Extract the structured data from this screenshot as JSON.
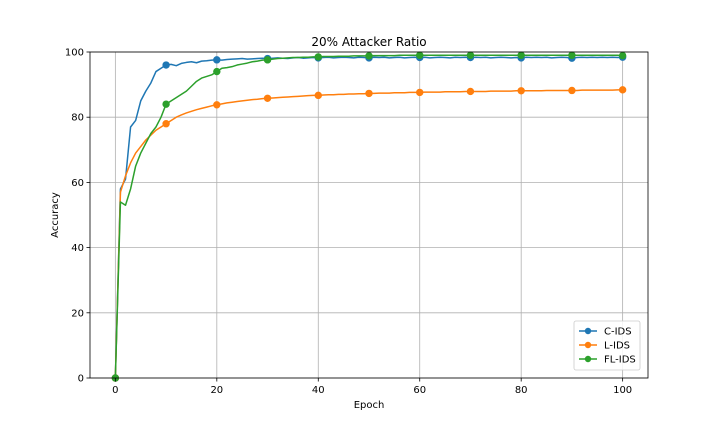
{
  "chart_data": {
    "type": "line",
    "title": "20% Attacker Ratio",
    "xlabel": "Epoch",
    "ylabel": "Accuracy",
    "xlim": [
      -5,
      105
    ],
    "ylim": [
      0,
      100
    ],
    "xticks": [
      0,
      20,
      40,
      60,
      80,
      100
    ],
    "yticks": [
      0,
      20,
      40,
      60,
      80,
      100
    ],
    "grid": true,
    "legend_position": "bottom-right",
    "marker_every": 10,
    "series": [
      {
        "name": "C-IDS",
        "color": "#1f77b4",
        "x": [
          0,
          1,
          2,
          3,
          4,
          5,
          6,
          7,
          8,
          9,
          10,
          11,
          12,
          13,
          14,
          15,
          16,
          17,
          18,
          19,
          20,
          21,
          22,
          23,
          24,
          25,
          26,
          27,
          28,
          29,
          30,
          31,
          32,
          33,
          34,
          35,
          36,
          37,
          38,
          39,
          40,
          41,
          42,
          43,
          44,
          45,
          46,
          47,
          48,
          49,
          50,
          51,
          52,
          53,
          54,
          55,
          56,
          57,
          58,
          59,
          60,
          61,
          62,
          63,
          64,
          65,
          66,
          67,
          68,
          69,
          70,
          71,
          72,
          73,
          74,
          75,
          76,
          77,
          78,
          79,
          80,
          81,
          82,
          83,
          84,
          85,
          86,
          87,
          88,
          89,
          90,
          91,
          92,
          93,
          94,
          95,
          96,
          97,
          98,
          99,
          100
        ],
        "y": [
          0,
          58,
          61,
          77,
          79,
          85,
          88,
          90.5,
          94,
          95,
          96,
          96.2,
          95.8,
          96.5,
          96.8,
          97,
          96.7,
          97.2,
          97.3,
          97.5,
          97.6,
          97.5,
          97.7,
          97.8,
          97.9,
          98,
          97.8,
          97.9,
          98,
          98.1,
          98,
          98.1,
          98.2,
          98.1,
          98,
          98.2,
          98.3,
          98.1,
          98.2,
          98.3,
          98.2,
          98.3,
          98.4,
          98.2,
          98.3,
          98.4,
          98.3,
          98.2,
          98.4,
          98.3,
          98.2,
          98.4,
          98.3,
          98.4,
          98.2,
          98.3,
          98.4,
          98.2,
          98.3,
          98.4,
          98.3,
          98.4,
          98.2,
          98.3,
          98.4,
          98.3,
          98.2,
          98.4,
          98.3,
          98.4,
          98.3,
          98.4,
          98.3,
          98.4,
          98.2,
          98.3,
          98.4,
          98.3,
          98.2,
          98.3,
          98.2,
          98.4,
          98.3,
          98.4,
          98.3,
          98.4,
          98.2,
          98.3,
          98.4,
          98.3,
          98.1,
          98.3,
          98.4,
          98.3,
          98.4,
          98.3,
          98.4,
          98.3,
          98.4,
          98.3,
          98.4
        ]
      },
      {
        "name": "L-IDS",
        "color": "#ff7f0e",
        "x": [
          0,
          1,
          2,
          3,
          4,
          5,
          6,
          7,
          8,
          9,
          10,
          11,
          12,
          13,
          14,
          15,
          16,
          17,
          18,
          19,
          20,
          21,
          22,
          23,
          24,
          25,
          26,
          27,
          28,
          29,
          30,
          31,
          32,
          33,
          34,
          35,
          36,
          37,
          38,
          39,
          40,
          41,
          42,
          43,
          44,
          45,
          46,
          47,
          48,
          49,
          50,
          51,
          52,
          53,
          54,
          55,
          56,
          57,
          58,
          59,
          60,
          61,
          62,
          63,
          64,
          65,
          66,
          67,
          68,
          69,
          70,
          71,
          72,
          73,
          74,
          75,
          76,
          77,
          78,
          79,
          80,
          81,
          82,
          83,
          84,
          85,
          86,
          87,
          88,
          89,
          90,
          91,
          92,
          93,
          94,
          95,
          96,
          97,
          98,
          99,
          100
        ],
        "y": [
          0,
          57,
          62,
          66,
          69,
          71,
          73,
          74.5,
          76,
          77,
          78,
          79,
          80,
          80.7,
          81.3,
          81.8,
          82.3,
          82.7,
          83.1,
          83.5,
          83.8,
          84.1,
          84.4,
          84.6,
          84.8,
          85,
          85.2,
          85.4,
          85.5,
          85.7,
          85.8,
          85.9,
          86,
          86.1,
          86.2,
          86.3,
          86.4,
          86.5,
          86.6,
          86.7,
          86.7,
          86.8,
          86.9,
          86.9,
          87,
          87,
          87.1,
          87.1,
          87.2,
          87.2,
          87.3,
          87.3,
          87.4,
          87.4,
          87.4,
          87.5,
          87.5,
          87.5,
          87.6,
          87.6,
          87.6,
          87.7,
          87.7,
          87.7,
          87.7,
          87.8,
          87.8,
          87.8,
          87.8,
          87.9,
          87.9,
          87.9,
          87.9,
          87.9,
          88,
          88,
          88,
          88,
          88,
          88.1,
          88.1,
          88.1,
          88.1,
          88.1,
          88.1,
          88.2,
          88.2,
          88.2,
          88.2,
          88.2,
          88.2,
          88.2,
          88.3,
          88.3,
          88.3,
          88.3,
          88.3,
          88.3,
          88.3,
          88.4,
          88.4
        ]
      },
      {
        "name": "FL-IDS",
        "color": "#2ca02c",
        "x": [
          0,
          1,
          2,
          3,
          4,
          5,
          6,
          7,
          8,
          9,
          10,
          11,
          12,
          13,
          14,
          15,
          16,
          17,
          18,
          19,
          20,
          21,
          22,
          23,
          24,
          25,
          26,
          27,
          28,
          29,
          30,
          31,
          32,
          33,
          34,
          35,
          36,
          37,
          38,
          39,
          40,
          41,
          42,
          43,
          44,
          45,
          46,
          47,
          48,
          49,
          50,
          51,
          52,
          53,
          54,
          55,
          56,
          57,
          58,
          59,
          60,
          61,
          62,
          63,
          64,
          65,
          66,
          67,
          68,
          69,
          70,
          71,
          72,
          73,
          74,
          75,
          76,
          77,
          78,
          79,
          80,
          81,
          82,
          83,
          84,
          85,
          86,
          87,
          88,
          89,
          90,
          91,
          92,
          93,
          94,
          95,
          96,
          97,
          98,
          99,
          100
        ],
        "y": [
          0,
          54,
          53,
          58,
          65,
          69,
          72,
          75,
          77,
          80,
          84,
          85,
          86,
          87,
          88,
          89.5,
          91,
          92,
          92.5,
          93,
          94,
          95,
          95.2,
          95.5,
          96,
          96.3,
          96.6,
          97,
          97.2,
          97.5,
          97.6,
          97.8,
          98,
          98.1,
          98.2,
          98.3,
          98.3,
          98.4,
          98.4,
          98.5,
          98.5,
          98.6,
          98.6,
          98.6,
          98.7,
          98.7,
          98.7,
          98.8,
          98.8,
          98.8,
          98.8,
          98.9,
          98.9,
          98.9,
          98.9,
          98.9,
          99,
          99,
          99,
          99,
          99,
          99,
          99,
          99,
          99,
          99,
          99,
          99,
          99,
          99,
          99,
          99,
          99,
          99,
          99,
          99,
          99,
          99,
          99,
          99,
          99,
          99,
          99,
          99,
          99,
          99,
          99,
          99,
          99,
          99,
          99,
          99,
          99,
          99,
          99,
          99,
          99,
          99,
          99,
          99,
          98.9
        ]
      }
    ]
  }
}
